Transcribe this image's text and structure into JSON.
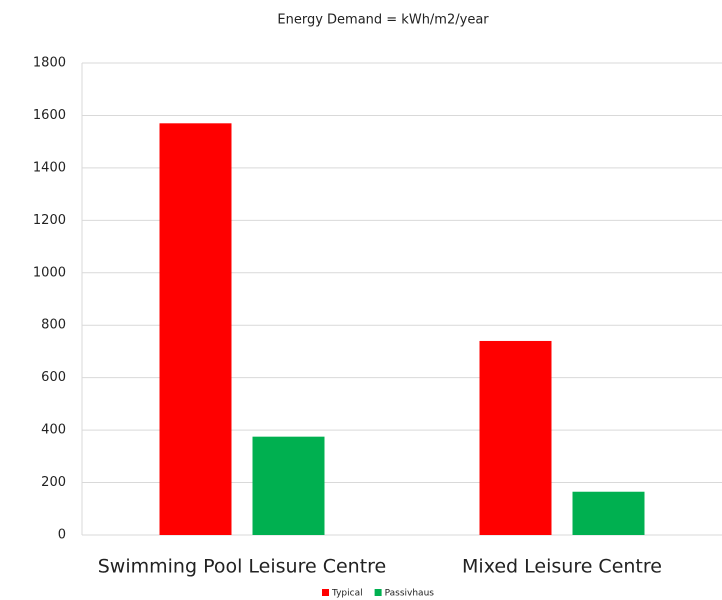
{
  "chart_data": {
    "type": "bar",
    "title": "Energy Demand = kWh/m2/year",
    "categories": [
      "Swimming Pool Leisure Centre",
      "Mixed Leisure Centre"
    ],
    "series": [
      {
        "name": "Typical",
        "color": "#ff0000",
        "values": [
          1570,
          740
        ]
      },
      {
        "name": "Passivhaus",
        "color": "#00b050",
        "values": [
          375,
          165
        ]
      }
    ],
    "ylim": [
      0,
      1800
    ],
    "yticks": [
      0,
      200,
      400,
      600,
      800,
      1000,
      1200,
      1400,
      1600,
      1800
    ],
    "grid": true,
    "legend": "bottom"
  }
}
